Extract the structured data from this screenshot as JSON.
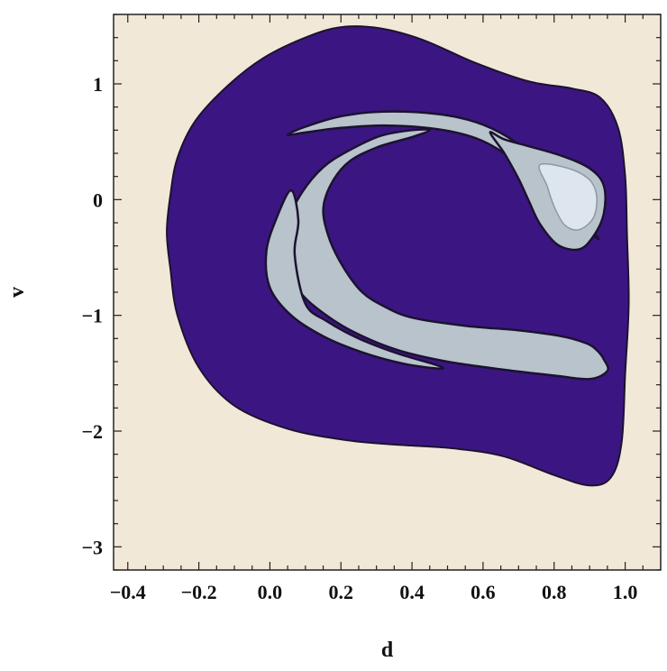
{
  "chart_data": {
    "type": "contour",
    "title": "",
    "xlabel": "d",
    "ylabel": "v",
    "xlim": [
      -0.44,
      1.1
    ],
    "ylim": [
      -3.2,
      1.6
    ],
    "x_ticks": [
      -0.4,
      -0.2,
      0.0,
      0.2,
      0.4,
      0.6,
      0.8,
      1.0
    ],
    "x_tick_labels": [
      "−0.4",
      "−0.2",
      "0.0",
      "0.2",
      "0.4",
      "0.6",
      "0.8",
      "1.0"
    ],
    "y_ticks": [
      1,
      0,
      -1,
      -2,
      -3
    ],
    "y_tick_labels": [
      "1",
      "0",
      "−1",
      "−2",
      "−3"
    ],
    "grid": false,
    "colors": {
      "background": "#f1e8d8",
      "basin": "#3b1682",
      "inner_light": "#dde6ef",
      "inner_mid": "#b8c3cc",
      "inner_gray": "#8f979f",
      "outline": "#1c1230",
      "frame": "#222222"
    },
    "regions": [
      {
        "level": "basin",
        "points": [
          [
            -0.29,
            -0.28
          ],
          [
            -0.28,
            0.04
          ],
          [
            -0.26,
            0.36
          ],
          [
            -0.21,
            0.68
          ],
          [
            -0.12,
            0.98
          ],
          [
            -0.02,
            1.22
          ],
          [
            0.1,
            1.4
          ],
          [
            0.2,
            1.49
          ],
          [
            0.31,
            1.48
          ],
          [
            0.43,
            1.38
          ],
          [
            0.58,
            1.18
          ],
          [
            0.73,
            1.02
          ],
          [
            0.85,
            0.96
          ],
          [
            0.93,
            0.88
          ],
          [
            0.98,
            0.62
          ],
          [
            1.0,
            0.2
          ],
          [
            1.005,
            -0.3
          ],
          [
            1.01,
            -0.9
          ],
          [
            1.0,
            -1.5
          ],
          [
            0.99,
            -2.1
          ],
          [
            0.96,
            -2.4
          ],
          [
            0.9,
            -2.47
          ],
          [
            0.8,
            -2.38
          ],
          [
            0.66,
            -2.22
          ],
          [
            0.52,
            -2.15
          ],
          [
            0.37,
            -2.12
          ],
          [
            0.22,
            -2.08
          ],
          [
            0.05,
            -1.98
          ],
          [
            -0.1,
            -1.78
          ],
          [
            -0.2,
            -1.45
          ],
          [
            -0.26,
            -1.0
          ],
          [
            -0.28,
            -0.6
          ]
        ]
      },
      {
        "level": "inner_gray",
        "points": [
          [
            0.05,
            0.56
          ],
          [
            0.1,
            0.63
          ],
          [
            0.2,
            0.72
          ],
          [
            0.32,
            0.76
          ],
          [
            0.47,
            0.74
          ],
          [
            0.58,
            0.67
          ],
          [
            0.67,
            0.54
          ],
          [
            0.74,
            0.37
          ],
          [
            0.8,
            0.17
          ],
          [
            0.86,
            -0.06
          ],
          [
            0.91,
            -0.28
          ],
          [
            0.92,
            -0.33
          ],
          [
            0.83,
            -0.12
          ],
          [
            0.78,
            0.06
          ],
          [
            0.72,
            0.24
          ],
          [
            0.66,
            0.4
          ],
          [
            0.58,
            0.53
          ],
          [
            0.47,
            0.61
          ],
          [
            0.33,
            0.64
          ],
          [
            0.2,
            0.62
          ],
          [
            0.1,
            0.58
          ]
        ]
      },
      {
        "level": "inner_gray",
        "points": [
          [
            0.62,
            0.58
          ],
          [
            0.66,
            0.52
          ],
          [
            0.73,
            0.46
          ],
          [
            0.82,
            0.38
          ],
          [
            0.9,
            0.27
          ],
          [
            0.94,
            0.12
          ],
          [
            0.94,
            -0.12
          ],
          [
            0.91,
            -0.32
          ],
          [
            0.87,
            -0.43
          ],
          [
            0.81,
            -0.39
          ],
          [
            0.76,
            -0.21
          ],
          [
            0.73,
            -0.02
          ],
          [
            0.7,
            0.18
          ],
          [
            0.66,
            0.4
          ]
        ]
      },
      {
        "level": "inner_light",
        "points": [
          [
            0.76,
            0.3
          ],
          [
            0.84,
            0.27
          ],
          [
            0.9,
            0.17
          ],
          [
            0.92,
            0.02
          ],
          [
            0.91,
            -0.16
          ],
          [
            0.87,
            -0.26
          ],
          [
            0.83,
            -0.22
          ],
          [
            0.8,
            -0.06
          ],
          [
            0.78,
            0.12
          ]
        ]
      },
      {
        "level": "inner_gray",
        "points": [
          [
            0.26,
            -0.8
          ],
          [
            0.32,
            -0.92
          ],
          [
            0.4,
            -1.02
          ],
          [
            0.55,
            -1.09
          ],
          [
            0.7,
            -1.13
          ],
          [
            0.82,
            -1.18
          ],
          [
            0.89,
            -1.24
          ],
          [
            0.92,
            -1.3
          ],
          [
            0.94,
            -1.38
          ],
          [
            0.95,
            -1.48
          ],
          [
            0.9,
            -1.55
          ],
          [
            0.8,
            -1.52
          ],
          [
            0.66,
            -1.47
          ],
          [
            0.5,
            -1.4
          ],
          [
            0.36,
            -1.3
          ],
          [
            0.24,
            -1.15
          ],
          [
            0.15,
            -0.98
          ],
          [
            0.08,
            -0.78
          ],
          [
            0.04,
            -0.5
          ],
          [
            0.05,
            -0.2
          ],
          [
            0.09,
            0.06
          ],
          [
            0.15,
            0.28
          ],
          [
            0.22,
            0.42
          ],
          [
            0.31,
            0.55
          ],
          [
            0.4,
            0.6
          ],
          [
            0.45,
            0.6
          ],
          [
            0.4,
            0.54
          ],
          [
            0.3,
            0.45
          ],
          [
            0.22,
            0.32
          ],
          [
            0.17,
            0.12
          ],
          [
            0.15,
            -0.1
          ],
          [
            0.17,
            -0.36
          ],
          [
            0.21,
            -0.6
          ]
        ]
      },
      {
        "level": "inner_gray",
        "points": [
          [
            0.1,
            -0.9
          ],
          [
            0.16,
            -1.05
          ],
          [
            0.25,
            -1.2
          ],
          [
            0.36,
            -1.33
          ],
          [
            0.47,
            -1.43
          ],
          [
            0.48,
            -1.46
          ],
          [
            0.38,
            -1.42
          ],
          [
            0.26,
            -1.32
          ],
          [
            0.15,
            -1.18
          ],
          [
            0.06,
            -1.0
          ],
          [
            0.0,
            -0.76
          ],
          [
            -0.01,
            -0.45
          ],
          [
            0.02,
            -0.15
          ],
          [
            0.06,
            0.08
          ],
          [
            0.08,
            -0.18
          ],
          [
            0.07,
            -0.48
          ]
        ]
      }
    ]
  }
}
